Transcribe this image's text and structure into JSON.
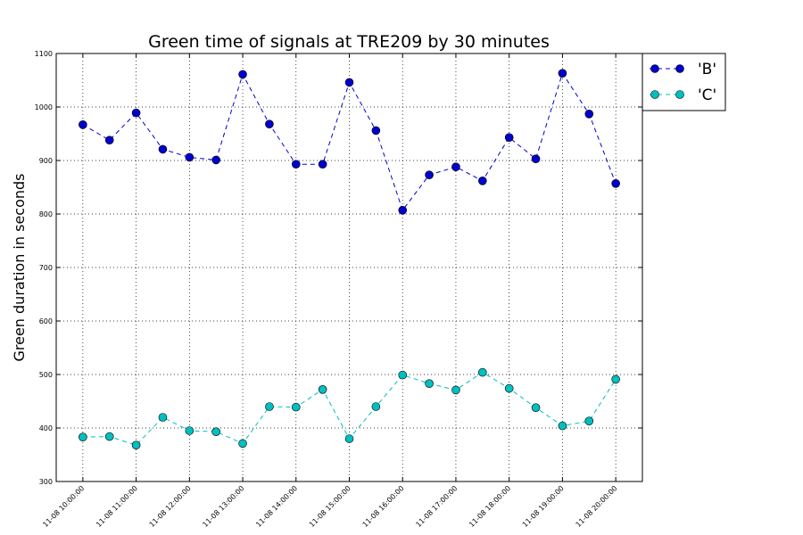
{
  "chart_data": {
    "type": "line",
    "title": "Green time of signals  at TRE209 by 30 minutes",
    "xlabel": "",
    "ylabel": "Green duration in seconds",
    "ylim": [
      300,
      1100
    ],
    "yticks": [
      300,
      400,
      500,
      600,
      700,
      800,
      900,
      1000,
      1100
    ],
    "xlim": [
      0,
      22
    ],
    "xticks": [
      {
        "x": 1,
        "label": "11-08 10:00:00"
      },
      {
        "x": 3,
        "label": "11-08 11:00:00"
      },
      {
        "x": 5,
        "label": "11-08 12:00:00"
      },
      {
        "x": 7,
        "label": "11-08 13:00:00"
      },
      {
        "x": 9,
        "label": "11-08 14:00:00"
      },
      {
        "x": 11,
        "label": "11-08 15:00:00"
      },
      {
        "x": 13,
        "label": "11-08 16:00:00"
      },
      {
        "x": 15,
        "label": "11-08 17:00:00"
      },
      {
        "x": 17,
        "label": "11-08 18:00:00"
      },
      {
        "x": 19,
        "label": "11-08 19:00:00"
      },
      {
        "x": 21,
        "label": "11-08 20:00:00"
      }
    ],
    "x": [
      1,
      2,
      3,
      4,
      5,
      6,
      7,
      8,
      9,
      10,
      11,
      12,
      13,
      14,
      15,
      16,
      17,
      18,
      19,
      20,
      21
    ],
    "grid": true,
    "legend": "top-right outside",
    "series": [
      {
        "name": "'B'",
        "color": "#0000cc",
        "values": [
          967,
          938,
          989,
          921,
          906,
          901,
          1061,
          968,
          893,
          893,
          1046,
          956,
          807,
          873,
          888,
          862,
          943,
          903,
          1063,
          987,
          857
        ]
      },
      {
        "name": "'C'",
        "color": "#00bfbf",
        "values": [
          383,
          384,
          368,
          420,
          395,
          393,
          371,
          440,
          439,
          472,
          380,
          440,
          499,
          483,
          471,
          504,
          474,
          438,
          404,
          413,
          491
        ]
      }
    ]
  }
}
